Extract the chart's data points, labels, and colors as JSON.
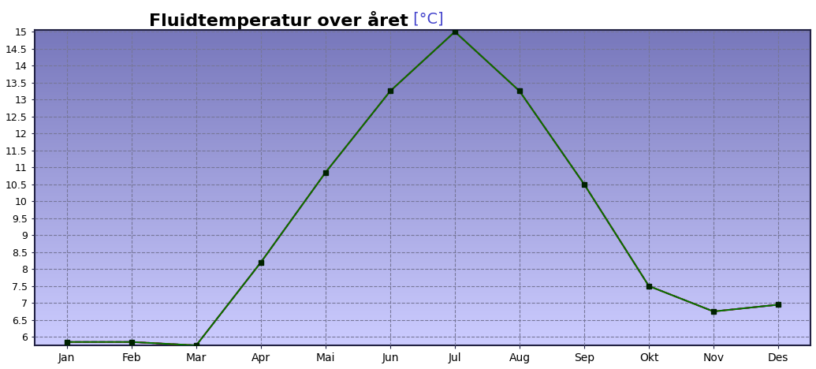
{
  "title_main": "Fluidtemperatur over året",
  "title_unit": " [°C]",
  "months": [
    "Jan",
    "Feb",
    "Mar",
    "Apr",
    "Mai",
    "Jun",
    "Jul",
    "Aug",
    "Sep",
    "Okt",
    "Nov",
    "Des"
  ],
  "x_positions": [
    0,
    1,
    2,
    3,
    4,
    5,
    6,
    7,
    8,
    9,
    10,
    11
  ],
  "y_values": [
    5.85,
    5.85,
    5.75,
    8.2,
    10.85,
    13.25,
    15.0,
    13.25,
    10.5,
    7.5,
    6.75,
    6.95
  ],
  "ylim_min": 5.75,
  "ylim_max": 15.05,
  "ytick_min": 6.0,
  "ytick_max": 15.0,
  "ytick_step": 0.5,
  "bg_color_top": "#7777bb",
  "bg_color_bottom": "#ccccff",
  "green_color": "#007700",
  "red_color": "#dd0000",
  "blue_color": "#0000dd",
  "grid_color": "#777799",
  "marker_color": "#002200",
  "line_width": 1.4,
  "marker_size": 4,
  "title_fontsize": 16,
  "title_unit_color": "#4444cc",
  "axis_label_fontsize": 10
}
